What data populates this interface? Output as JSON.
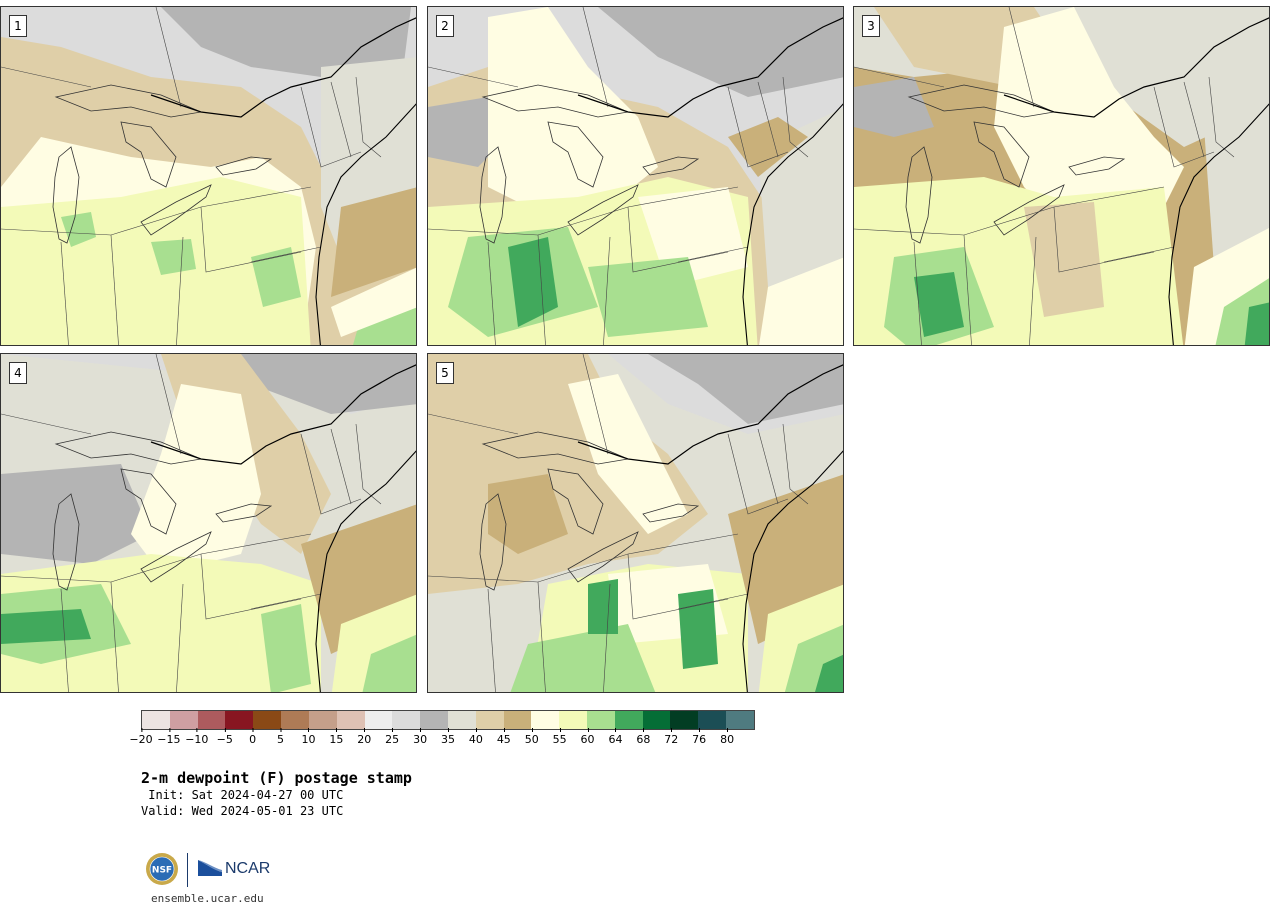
{
  "panels": [
    {
      "number": "1",
      "scenario": 1
    },
    {
      "number": "2",
      "scenario": 2
    },
    {
      "number": "3",
      "scenario": 3
    },
    {
      "number": "4",
      "scenario": 4
    },
    {
      "number": "5",
      "scenario": 5
    }
  ],
  "colorbar": {
    "colors": [
      "#ece4e2",
      "#cf9fa2",
      "#ad5b5e",
      "#881621",
      "#8a4916",
      "#ae7b56",
      "#c59f8a",
      "#dec1b4",
      "#eeeeee",
      "#dcdcdc",
      "#b4b4b4",
      "#e0e0d5",
      "#dfcfa8",
      "#c9b07a",
      "#fffde3",
      "#f3fab8",
      "#a8df90",
      "#41a95c",
      "#056e36",
      "#023d23",
      "#1b4e55",
      "#4f7b80"
    ],
    "ticks": [
      "−20",
      "−15",
      "−10",
      "−5",
      "0",
      "5",
      "10",
      "15",
      "20",
      "25",
      "30",
      "35",
      "40",
      "45",
      "50",
      "55",
      "60",
      "64",
      "68",
      "72",
      "76",
      "80"
    ]
  },
  "title": "2-m dewpoint (F) postage stamp",
  "init": " Init: Sat 2024-04-27 00 UTC",
  "valid": "Valid: Wed 2024-05-01 23 UTC",
  "logo": {
    "nsf_label": "NSF",
    "ncar_label": "NCAR"
  },
  "site": "ensemble.ucar.edu"
}
